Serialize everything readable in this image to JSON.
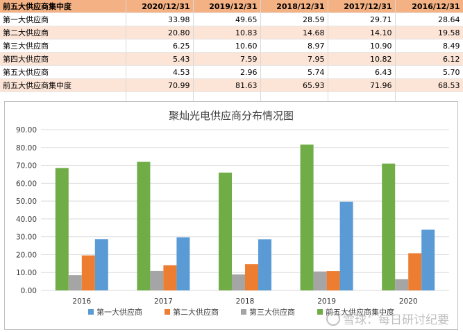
{
  "table": {
    "header": [
      "前五大供应商集中度",
      "2020/12/31",
      "2019/12/31",
      "2018/12/31",
      "2017/12/31",
      "2016/12/31"
    ],
    "rows": [
      {
        "label": "第一大供应商",
        "values": [
          "33.98",
          "49.65",
          "28.59",
          "29.71",
          "28.64"
        ]
      },
      {
        "label": "第二大供应商",
        "values": [
          "20.80",
          "10.83",
          "14.68",
          "14.10",
          "19.58"
        ]
      },
      {
        "label": "第三大供应商",
        "values": [
          "6.25",
          "10.60",
          "8.97",
          "10.90",
          "8.49"
        ]
      },
      {
        "label": "第四大供应商",
        "values": [
          "5.43",
          "7.59",
          "7.95",
          "10.82",
          "6.12"
        ]
      },
      {
        "label": "第五大供应商",
        "values": [
          "4.53",
          "2.96",
          "5.74",
          "6.43",
          "5.70"
        ]
      },
      {
        "label": "前五大供应商集中度",
        "values": [
          "70.99",
          "81.63",
          "65.93",
          "71.96",
          "68.53"
        ]
      }
    ]
  },
  "chart_data": {
    "type": "bar",
    "title": "聚灿光电供应商分布情况图",
    "categories": [
      "2016",
      "2017",
      "2018",
      "2019",
      "2020"
    ],
    "series": [
      {
        "name": "前五大供应商集中度",
        "color": "#70ad47",
        "values": [
          68.53,
          71.96,
          65.93,
          81.63,
          70.99
        ]
      },
      {
        "name": "第三大供应商",
        "color": "#a5a5a5",
        "values": [
          8.49,
          10.9,
          8.97,
          10.6,
          6.25
        ]
      },
      {
        "name": "第二大供应商",
        "color": "#ed7d31",
        "values": [
          19.58,
          14.1,
          14.68,
          10.83,
          20.8
        ]
      },
      {
        "name": "第一大供应商",
        "color": "#5b9bd5",
        "values": [
          28.64,
          29.71,
          28.59,
          49.65,
          33.98
        ]
      }
    ],
    "legend_order": [
      "第一大供应商",
      "第二大供应商",
      "第三大供应商",
      "前五大供应商集中度"
    ],
    "ylim": [
      0,
      90
    ],
    "yticks": [
      "0.00",
      "10.00",
      "20.00",
      "30.00",
      "40.00",
      "50.00",
      "60.00",
      "70.00",
      "80.00",
      "90.00"
    ],
    "grid": true,
    "legend_position": "bottom"
  },
  "watermark": "雪球：每日研讨纪要"
}
